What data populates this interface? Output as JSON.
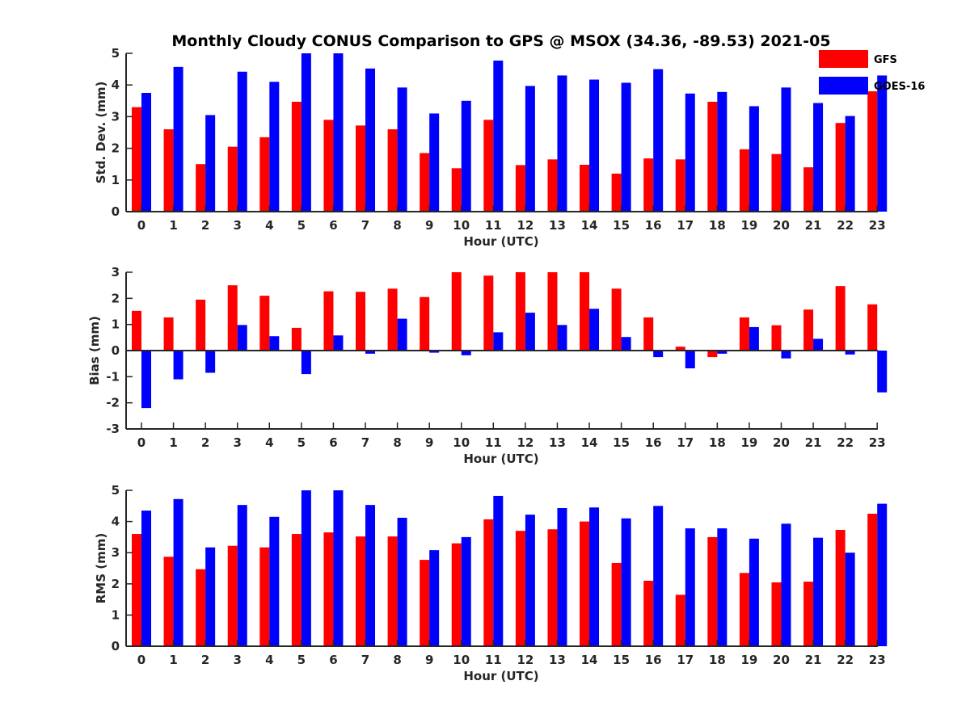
{
  "chart_data": {
    "type": "bar",
    "title": "Monthly Cloudy CONUS Comparison to GPS @ MSOX (34.36, -89.53) 2021-05",
    "colors": {
      "GFS": "#ff0000",
      "GOES-16": "#0000ff",
      "axis": "#262626"
    },
    "legend": {
      "entries": [
        "GFS",
        "GOES-16"
      ],
      "position": "top-right"
    },
    "categories": [
      "0",
      "1",
      "2",
      "3",
      "4",
      "5",
      "6",
      "7",
      "8",
      "9",
      "10",
      "11",
      "12",
      "13",
      "14",
      "15",
      "16",
      "17",
      "18",
      "19",
      "20",
      "21",
      "22",
      "23"
    ],
    "panels": [
      {
        "id": "std",
        "xlabel": "Hour (UTC)",
        "ylabel": "Std. Dev. (mm)",
        "ylim": [
          0,
          5
        ],
        "yticks": [
          0,
          1,
          2,
          3,
          4,
          5
        ],
        "series": [
          {
            "name": "GFS",
            "values": [
              3.3,
              2.6,
              1.5,
              2.05,
              2.35,
              3.47,
              2.9,
              2.72,
              2.6,
              1.85,
              1.37,
              2.9,
              1.47,
              1.65,
              1.48,
              1.2,
              1.68,
              1.65,
              3.47,
              1.97,
              1.82,
              1.4,
              2.8,
              3.8
            ]
          },
          {
            "name": "GOES-16",
            "values": [
              3.75,
              4.57,
              3.05,
              4.42,
              4.1,
              5.0,
              5.0,
              4.52,
              3.92,
              3.1,
              3.5,
              4.77,
              3.97,
              4.3,
              4.17,
              4.07,
              4.5,
              3.73,
              3.78,
              3.33,
              3.92,
              3.43,
              3.02,
              4.3
            ]
          }
        ]
      },
      {
        "id": "bias",
        "xlabel": "Hour (UTC)",
        "ylabel": "Bias (mm)",
        "ylim": [
          -3,
          3
        ],
        "yticks": [
          -3,
          -2,
          -1,
          0,
          1,
          2,
          3
        ],
        "series": [
          {
            "name": "GFS",
            "values": [
              1.52,
              1.27,
              1.95,
              2.5,
              2.1,
              0.87,
              2.27,
              2.25,
              2.37,
              2.05,
              3.0,
              2.87,
              3.0,
              3.0,
              3.0,
              2.37,
              1.27,
              0.15,
              -0.25,
              1.27,
              0.97,
              1.57,
              2.47,
              1.77
            ]
          },
          {
            "name": "GOES-16",
            "values": [
              -2.2,
              -1.1,
              -0.85,
              0.98,
              0.55,
              -0.9,
              0.58,
              -0.12,
              1.22,
              -0.08,
              -0.18,
              0.7,
              1.45,
              0.98,
              1.6,
              0.52,
              -0.25,
              -0.68,
              -0.12,
              0.9,
              -0.3,
              0.45,
              -0.15,
              -1.6
            ]
          }
        ]
      },
      {
        "id": "rms",
        "xlabel": "Hour (UTC)",
        "ylabel": "RMS (mm)",
        "ylim": [
          0,
          5
        ],
        "yticks": [
          0,
          1,
          2,
          3,
          4,
          5
        ],
        "series": [
          {
            "name": "GFS",
            "values": [
              3.6,
              2.87,
              2.47,
              3.22,
              3.17,
              3.6,
              3.65,
              3.52,
              3.52,
              2.77,
              3.3,
              4.07,
              3.7,
              3.75,
              4.0,
              2.67,
              2.1,
              1.65,
              3.5,
              2.35,
              2.05,
              2.07,
              3.73,
              4.25
            ]
          },
          {
            "name": "GOES-16",
            "values": [
              4.35,
              4.72,
              3.17,
              4.53,
              4.15,
              5.0,
              5.0,
              4.53,
              4.12,
              3.08,
              3.5,
              4.82,
              4.22,
              4.43,
              4.45,
              4.1,
              4.5,
              3.78,
              3.78,
              3.45,
              3.93,
              3.48,
              3.0,
              4.57
            ]
          }
        ]
      }
    ]
  }
}
